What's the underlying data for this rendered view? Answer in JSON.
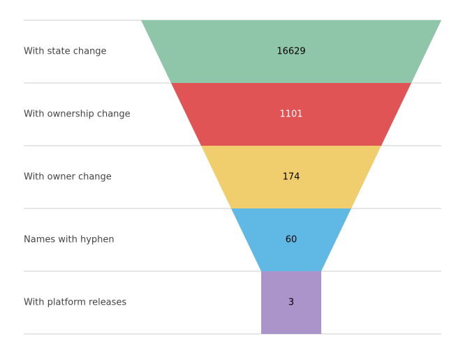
{
  "chart_data": {
    "type": "funnel",
    "categories": [
      "With state change",
      "With ownership change",
      "With owner change",
      "Names with hyphen",
      "With platform releases"
    ],
    "values": [
      16629,
      1101,
      174,
      60,
      3
    ],
    "value_labels": [
      "16629",
      "1101",
      "174",
      "60",
      "3"
    ],
    "colors": [
      "#8fc5a8",
      "#e05456",
      "#f0cd6d",
      "#60b8e4",
      "#ab94c9"
    ],
    "label_colors": [
      "#000000",
      "#ffffff",
      "#000000",
      "#000000",
      "#000000"
    ],
    "grid": true,
    "legend": "none"
  }
}
